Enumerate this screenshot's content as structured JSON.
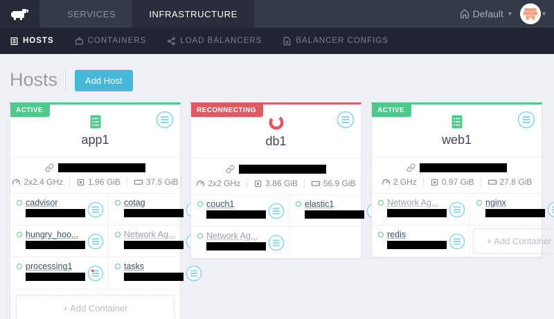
{
  "topnav": {
    "tabs": [
      {
        "label": "SERVICES",
        "active": false
      },
      {
        "label": "INFRASTRUCTURE",
        "active": true
      }
    ],
    "environment_label": "Default"
  },
  "subnav": {
    "items": [
      {
        "label": "HOSTS",
        "icon": "hosts-icon",
        "active": true
      },
      {
        "label": "CONTAINERS",
        "icon": "containers-icon",
        "active": false
      },
      {
        "label": "LOAD BALANCERS",
        "icon": "load-balancers-icon",
        "active": false
      },
      {
        "label": "BALANCER CONFIGS",
        "icon": "balancer-configs-icon",
        "active": false
      }
    ]
  },
  "page": {
    "title": "Hosts",
    "add_host_label": "Add Host",
    "add_container_label": "+ Add Container"
  },
  "colors": {
    "active": "#4dc98b",
    "reconnecting": "#df5a63",
    "accent_blue": "#45b7d9",
    "menu_icon_blue": "#7fd0eb",
    "alert_red": "#e2574c"
  },
  "hosts": [
    {
      "name": "app1",
      "state": "ACTIVE",
      "state_type": "active",
      "cpu": "2x2.4 GHz",
      "memory": "1.96 GiB",
      "storage": "37.5 GiB",
      "address_redacted": true,
      "containers": [
        {
          "name": "cadvisor",
          "kind": "user",
          "address_redacted": true,
          "menu_alert": false
        },
        {
          "name": "cotag",
          "kind": "user",
          "address_redacted": true,
          "menu_alert": false
        },
        {
          "name": "hungry_hoo...",
          "kind": "user",
          "address_redacted": true,
          "menu_alert": false
        },
        {
          "name": "Network Ag...",
          "kind": "agent",
          "address_redacted": true,
          "menu_alert": false
        },
        {
          "name": "processing1",
          "kind": "user",
          "address_redacted": true,
          "menu_alert": true
        },
        {
          "name": "tasks",
          "kind": "user",
          "address_redacted": true,
          "menu_alert": false
        }
      ],
      "trailing_cell": "none",
      "add_row": true
    },
    {
      "name": "db1",
      "state": "RECONNECTING",
      "state_type": "reconnecting",
      "cpu": "2x2 GHz",
      "memory": "3.86 GiB",
      "storage": "56.9 GiB",
      "address_redacted": true,
      "containers": [
        {
          "name": "couch1",
          "kind": "user",
          "address_redacted": true,
          "menu_alert": false
        },
        {
          "name": "elastic1",
          "kind": "user",
          "address_redacted": true,
          "menu_alert": false
        },
        {
          "name": "Network Ag...",
          "kind": "agent",
          "address_redacted": true,
          "menu_alert": false
        }
      ],
      "trailing_cell": "empty",
      "add_row": false
    },
    {
      "name": "web1",
      "state": "ACTIVE",
      "state_type": "active",
      "cpu": "2 GHz",
      "memory": "0.97 GiB",
      "storage": "27.8 GiB",
      "address_redacted": true,
      "containers": [
        {
          "name": "Network Ag...",
          "kind": "agent",
          "address_redacted": true,
          "menu_alert": false
        },
        {
          "name": "nginx",
          "kind": "user",
          "address_redacted": true,
          "menu_alert": false
        },
        {
          "name": "redis",
          "kind": "user",
          "address_redacted": true,
          "menu_alert": false
        }
      ],
      "trailing_cell": "add",
      "add_row": false
    }
  ]
}
